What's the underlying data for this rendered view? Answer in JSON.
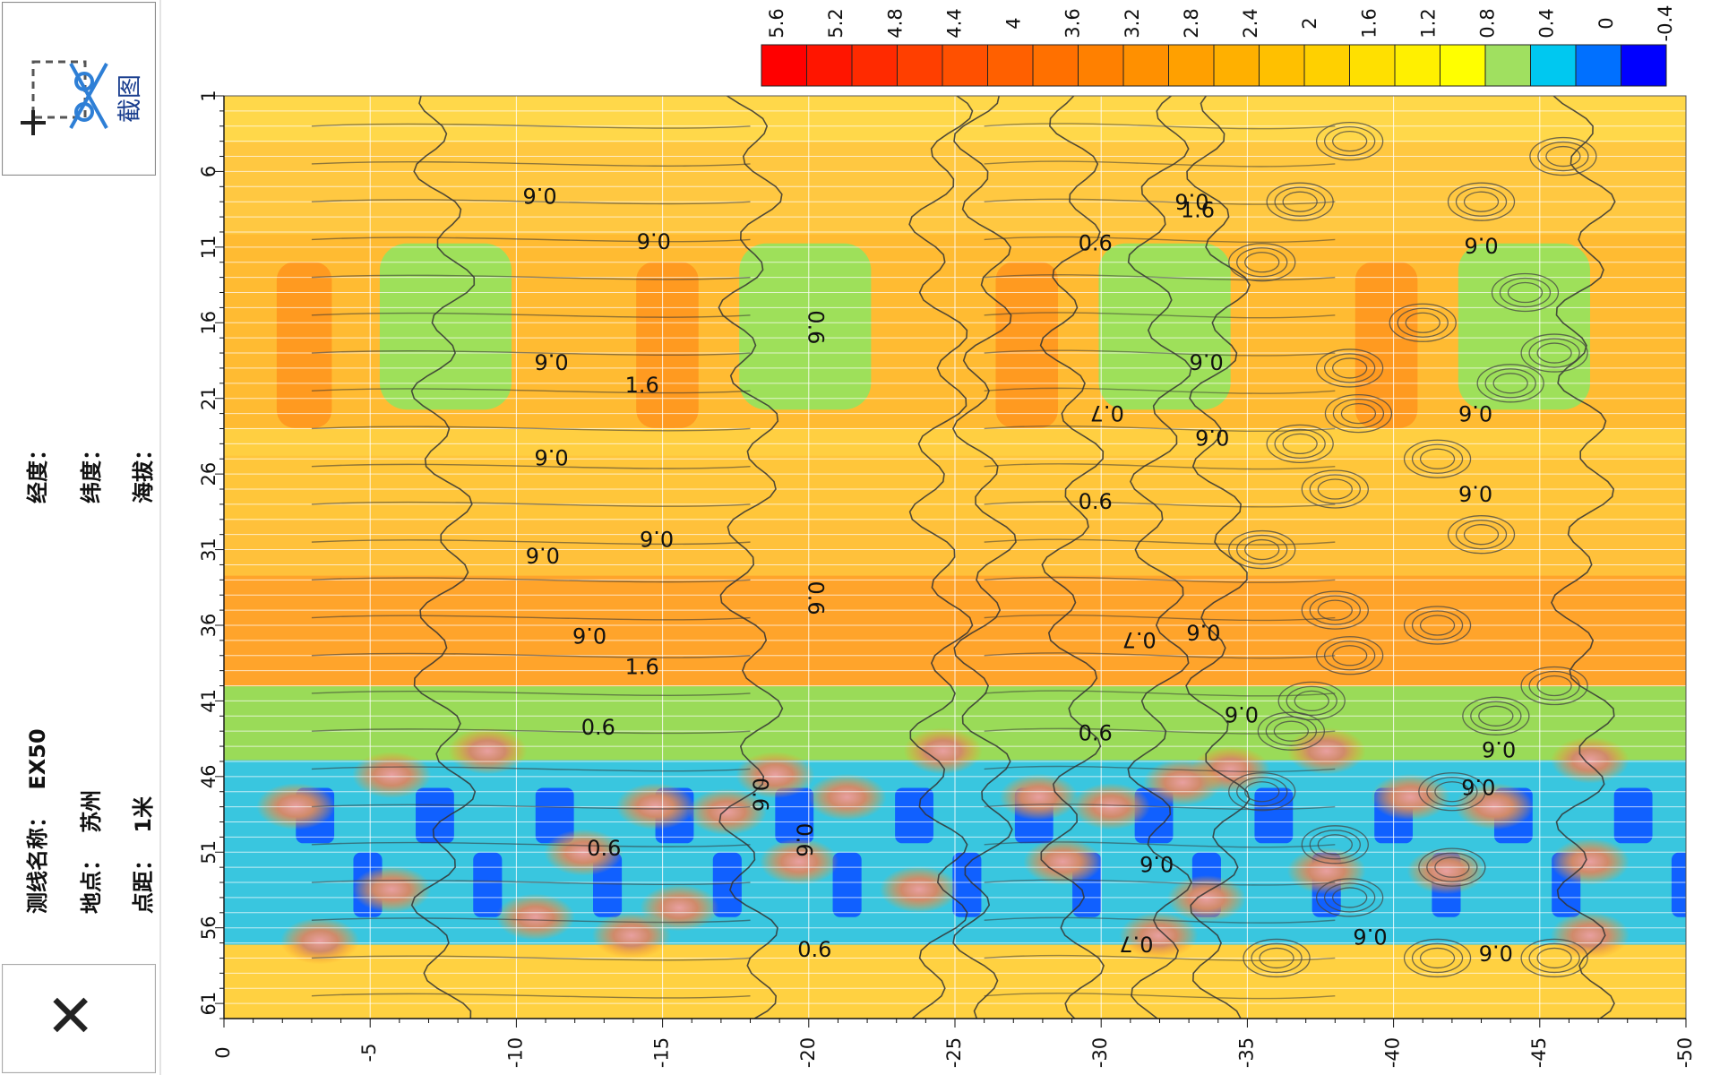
{
  "sidebar": {
    "screenshot_label": "截图",
    "line_name_label": "测线名称：",
    "line_name_value": "EX50",
    "location_label": "地点：",
    "location_value": "苏州",
    "spacing_label": "点距：",
    "spacing_value": "1米",
    "longitude_label": "经度：",
    "latitude_label": "纬度：",
    "altitude_label": "海拔：",
    "close_symbol": "✕"
  },
  "chart_data": {
    "type": "heatmap",
    "title": "",
    "xlabel": "",
    "ylabel": "",
    "x_range": [
      1,
      62
    ],
    "y_range": [
      0,
      -50
    ],
    "x_ticks": [
      1,
      6,
      11,
      16,
      21,
      26,
      31,
      36,
      41,
      46,
      51,
      56,
      61
    ],
    "y_ticks": [
      0,
      -5,
      -10,
      -15,
      -20,
      -25,
      -30,
      -35,
      -40,
      -45,
      -50
    ],
    "grid": true,
    "legend_position": "top-right",
    "colorbar": {
      "ticks": [
        "5.6",
        "5.2",
        "4.8",
        "4.4",
        "4",
        "3.6",
        "3.2",
        "2.8",
        "2.4",
        "2",
        "1.6",
        "1.2",
        "0.8",
        "0.4",
        "0",
        "-0.4"
      ],
      "colors": [
        "#ff0000",
        "#ff1500",
        "#ff2a00",
        "#ff3f00",
        "#ff5000",
        "#ff6000",
        "#ff7000",
        "#ff8000",
        "#ff9000",
        "#ffa000",
        "#ffb000",
        "#ffc000",
        "#ffd000",
        "#ffe000",
        "#fff000",
        "#ffff00",
        "#a0e060",
        "#00c8f0",
        "#0070ff",
        "#0000ff"
      ]
    },
    "contour_labels": [
      {
        "text": "0.6",
        "x": 57.5,
        "y": -20.2,
        "rotate": 0
      },
      {
        "text": "0.7",
        "x": 57.0,
        "y": -31.2,
        "rotate": 180
      },
      {
        "text": "0.6",
        "x": 56.5,
        "y": -39.2,
        "rotate": 180
      },
      {
        "text": "0.6",
        "x": 57.6,
        "y": -43.5,
        "rotate": 180
      },
      {
        "text": "0.6",
        "x": 50.8,
        "y": -13.0,
        "rotate": 0
      },
      {
        "text": "0.6",
        "x": 50.2,
        "y": -19.8,
        "rotate": 90
      },
      {
        "text": "0.6",
        "x": 51.7,
        "y": -31.9,
        "rotate": 180
      },
      {
        "text": "0.6",
        "x": 47.2,
        "y": -18.3,
        "rotate": 90
      },
      {
        "text": "0.6",
        "x": 44.1,
        "y": -43.6,
        "rotate": 180
      },
      {
        "text": "0.6",
        "x": 42.8,
        "y": -12.8,
        "rotate": 0
      },
      {
        "text": "0.6",
        "x": 43.2,
        "y": -29.8,
        "rotate": 0
      },
      {
        "text": "0.6",
        "x": 41.8,
        "y": -34.8,
        "rotate": 180
      },
      {
        "text": "1.6",
        "x": 38.8,
        "y": -14.3,
        "rotate": 0
      },
      {
        "text": "0.6",
        "x": 36.6,
        "y": -12.5,
        "rotate": 180
      },
      {
        "text": "0.7",
        "x": 36.9,
        "y": -31.3,
        "rotate": 180
      },
      {
        "text": "0.6",
        "x": 36.4,
        "y": -33.5,
        "rotate": 180
      },
      {
        "text": "0.6",
        "x": 34.2,
        "y": -20.2,
        "rotate": 90
      },
      {
        "text": "0.6",
        "x": 31.3,
        "y": -10.9,
        "rotate": 180
      },
      {
        "text": "0.6",
        "x": 30.2,
        "y": -14.8,
        "rotate": 180
      },
      {
        "text": "0.6",
        "x": 27.9,
        "y": -29.8,
        "rotate": 0
      },
      {
        "text": "0.6",
        "x": 24.8,
        "y": -11.2,
        "rotate": 180
      },
      {
        "text": "0.6",
        "x": 23.5,
        "y": -33.8,
        "rotate": 180
      },
      {
        "text": "0.6",
        "x": 18.5,
        "y": -11.2,
        "rotate": 180
      },
      {
        "text": "0.6",
        "x": 16.3,
        "y": -20.2,
        "rotate": 90
      },
      {
        "text": "1.6",
        "x": 20.2,
        "y": -14.3,
        "rotate": 0
      },
      {
        "text": "0.7",
        "x": 21.9,
        "y": -30.2,
        "rotate": 180
      },
      {
        "text": "0.6",
        "x": 18.5,
        "y": -33.6,
        "rotate": 180
      },
      {
        "text": "0.6",
        "x": 10.5,
        "y": -14.7,
        "rotate": 180
      },
      {
        "text": "0.6",
        "x": 10.8,
        "y": -29.8,
        "rotate": 0
      },
      {
        "text": "0.6",
        "x": 7.5,
        "y": -10.8,
        "rotate": 180
      },
      {
        "text": "1.6",
        "x": 8.6,
        "y": -33.3,
        "rotate": 0
      },
      {
        "text": "0.6",
        "x": 7.9,
        "y": -33.1,
        "rotate": 180
      },
      {
        "text": "0.6",
        "x": 10.8,
        "y": -43.0,
        "rotate": 180
      },
      {
        "text": "0.6",
        "x": 46.6,
        "y": -42.9,
        "rotate": 180
      },
      {
        "text": "0.6",
        "x": 27.2,
        "y": -42.8,
        "rotate": 180
      },
      {
        "text": "0.6",
        "x": 21.9,
        "y": -42.8,
        "rotate": 180
      }
    ]
  }
}
